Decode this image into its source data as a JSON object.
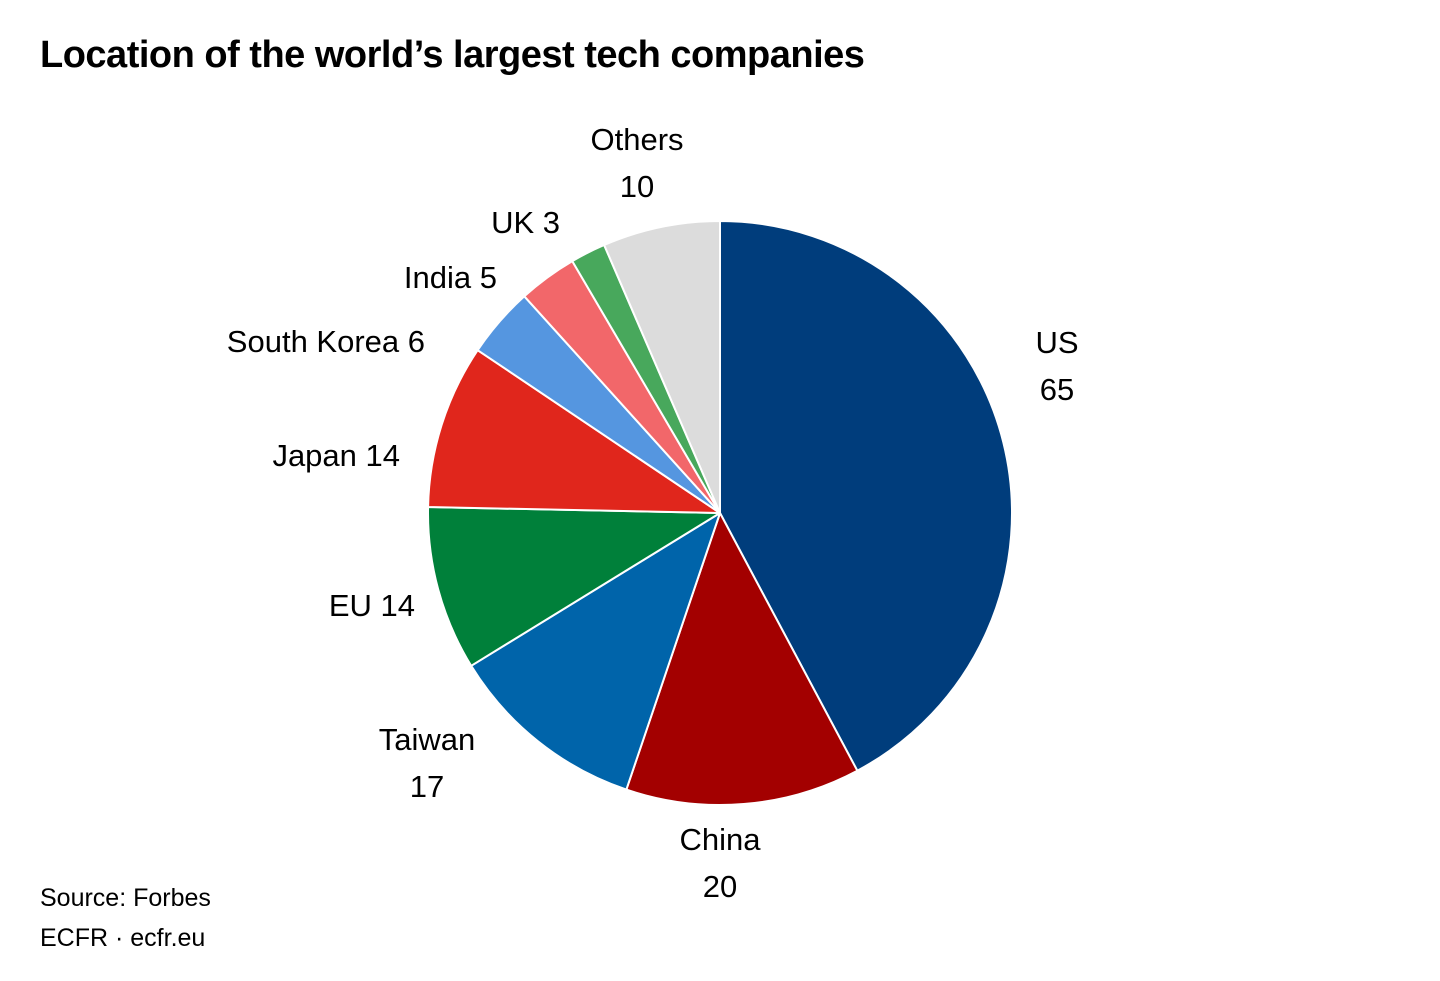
{
  "title": "Location of the world’s largest tech companies",
  "chart_data": {
    "type": "pie",
    "title": "Location of the world’s largest tech companies",
    "slices": [
      {
        "label": "US",
        "value": 65,
        "color": "#003d7c"
      },
      {
        "label": "China",
        "value": 20,
        "color": "#a30000"
      },
      {
        "label": "Taiwan",
        "value": 17,
        "color": "#0064aa"
      },
      {
        "label": "EU",
        "value": 14,
        "color": "#00803a"
      },
      {
        "label": "Japan",
        "value": 14,
        "color": "#e0261c"
      },
      {
        "label": "South Korea",
        "value": 6,
        "color": "#5596e0"
      },
      {
        "label": "India",
        "value": 5,
        "color": "#f2676a"
      },
      {
        "label": "UK",
        "value": 3,
        "color": "#48a85c"
      },
      {
        "label": "Others",
        "value": 10,
        "color": "#dcdcdc"
      }
    ]
  },
  "footer": {
    "source": "Source: Forbes",
    "credit": "ECFR · ecfr.eu"
  }
}
